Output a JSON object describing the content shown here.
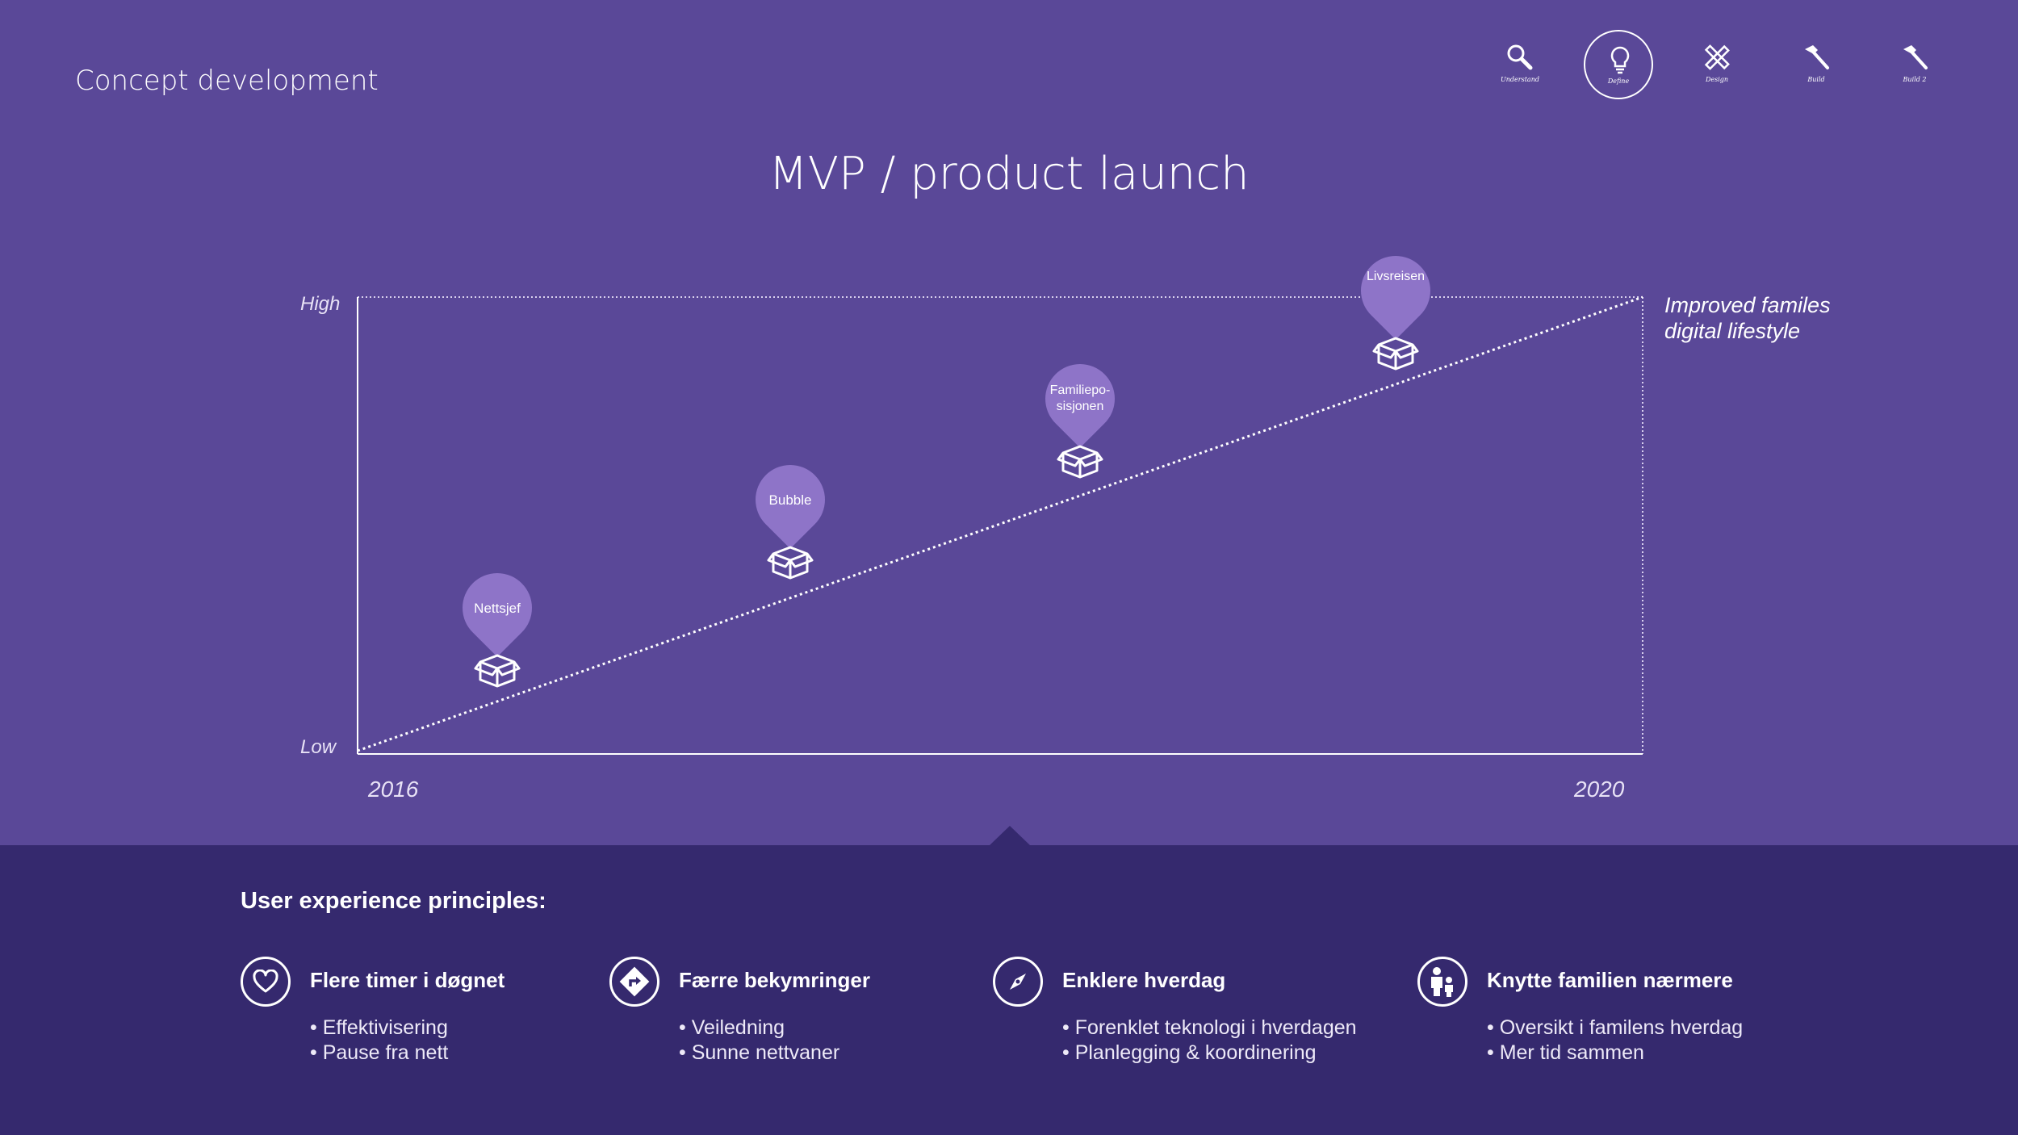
{
  "header": {
    "title": "Concept development",
    "nav": [
      {
        "label": "Understand",
        "icon": "search-icon"
      },
      {
        "label": "Define",
        "icon": "lightbulb-icon",
        "active": true
      },
      {
        "label": "Design",
        "icon": "ruler-pencil-icon"
      },
      {
        "label": "Build",
        "icon": "hammer-icon"
      },
      {
        "label": "Build 2",
        "icon": "hammer-icon"
      }
    ]
  },
  "chart_data": {
    "type": "line",
    "title": "MVP / product launch",
    "xlabel": "",
    "ylabel": "",
    "x_ticks": [
      "2016",
      "2020"
    ],
    "y_ticks": [
      "Low",
      "High"
    ],
    "line_end_label": "Improved familes digital lifestyle",
    "line_style": "dotted",
    "milestones": [
      {
        "label": "Nettsjef",
        "icon": "box-icon"
      },
      {
        "label": "Bubble",
        "icon": "box-icon"
      },
      {
        "label": "Familiepo-sisjonen",
        "icon": "box-icon"
      },
      {
        "label": "Livsreisen",
        "icon": "box-icon"
      }
    ]
  },
  "principles": {
    "title": "User experience principles:",
    "items": [
      {
        "title": "Flere timer i døgnet",
        "icon": "heart-icon",
        "bullets": [
          "Effektivisering",
          "Pause fra nett"
        ]
      },
      {
        "title": "Færre bekymringer",
        "icon": "road-sign-icon",
        "bullets": [
          "Veiledning",
          "Sunne nettvaner"
        ]
      },
      {
        "title": "Enklere hverdag",
        "icon": "compass-icon",
        "bullets": [
          "Forenklet teknologi i hverdagen",
          "Planlegging & koordinering"
        ]
      },
      {
        "title": "Knytte familien nærmere",
        "icon": "family-icon",
        "bullets": [
          "Oversikt i familens hverdag",
          "Mer tid sammen"
        ]
      }
    ]
  },
  "colors": {
    "background_top": "#5a4898",
    "background_bottom": "#35296e",
    "pin": "#8e74c8"
  }
}
